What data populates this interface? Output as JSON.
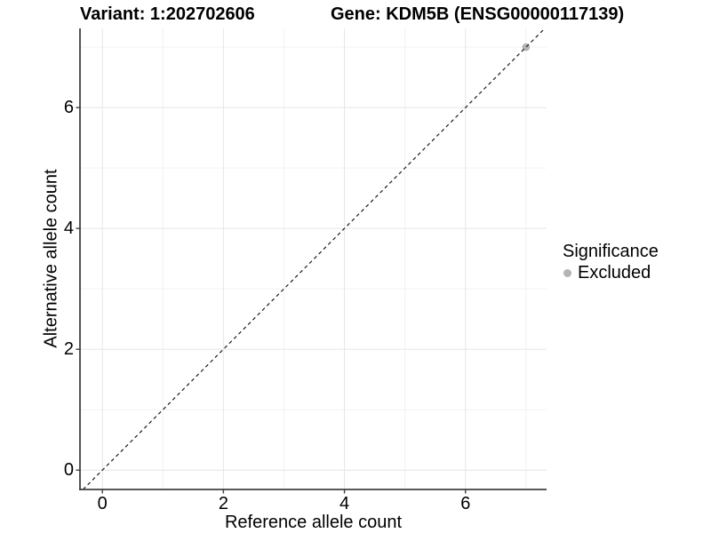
{
  "header": {
    "title_left": "Variant: 1:202702606",
    "title_right": "Gene: KDM5B (ENSG00000117139)"
  },
  "chart_data": {
    "type": "scatter",
    "title": "Variant: 1:202702606    Gene: KDM5B (ENSG00000117139)",
    "xlabel": "Reference allele count",
    "ylabel": "Alternative allele count",
    "xlim": [
      -0.37,
      7.34
    ],
    "ylim": [
      -0.32,
      7.31
    ],
    "x_ticks": [
      0,
      2,
      4,
      6
    ],
    "x_tick_labels": [
      "0",
      "2",
      "4",
      "6"
    ],
    "y_ticks": [
      0,
      2,
      4,
      6
    ],
    "y_tick_labels": [
      "0",
      "2",
      "4",
      "6"
    ],
    "x_minor_gridlines": [
      1,
      3,
      5,
      7
    ],
    "y_minor_gridlines": [
      1,
      3,
      5,
      7
    ],
    "grid": true,
    "series": [
      {
        "name": "Excluded",
        "color": "#b3b3b3",
        "points": [
          [
            7,
            7
          ]
        ]
      }
    ],
    "reference_line": {
      "type": "identity",
      "slope": 1,
      "intercept": 0,
      "style": "dashed",
      "color": "#1a1a1a"
    },
    "legend": {
      "title": "Significance",
      "position": "right",
      "entries": [
        {
          "label": "Excluded",
          "color": "#b3b3b3",
          "marker": "circle"
        }
      ]
    }
  },
  "colors": {
    "background": "#ffffff",
    "grid_major": "#e6e6e6",
    "grid_minor": "#f2f2f2",
    "axis_line": "#404040",
    "text": "#000000",
    "excluded_point": "#b3b3b3"
  }
}
